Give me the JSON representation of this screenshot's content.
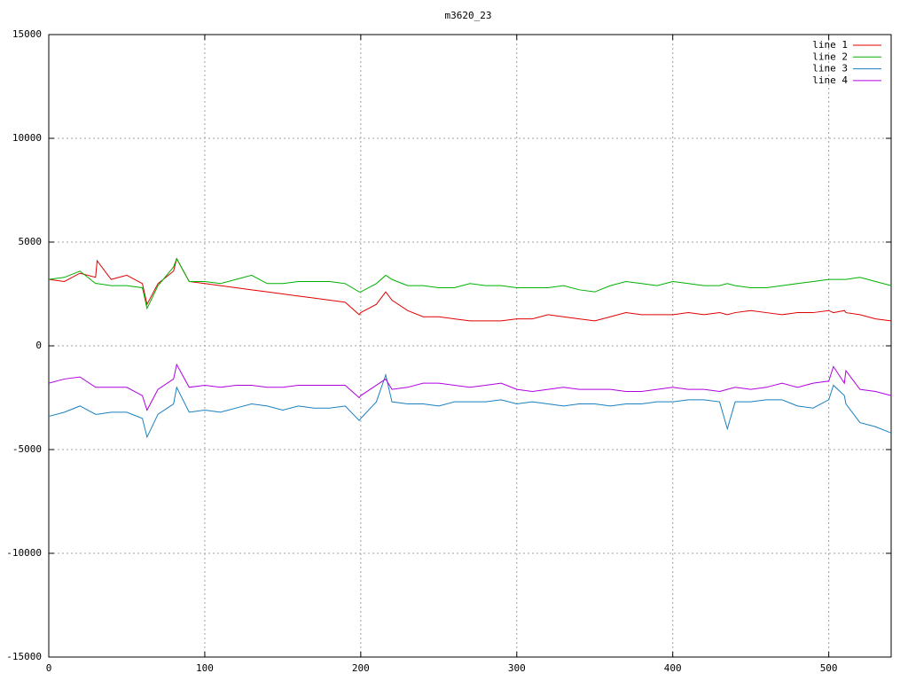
{
  "chart_data": {
    "type": "line",
    "title": "m3620_23",
    "x": [
      0,
      10,
      20,
      30,
      31,
      40,
      50,
      60,
      63,
      70,
      80,
      82,
      90,
      100,
      110,
      120,
      130,
      140,
      150,
      160,
      170,
      180,
      190,
      199,
      200,
      210,
      216,
      220,
      230,
      240,
      250,
      260,
      270,
      280,
      290,
      300,
      310,
      320,
      330,
      340,
      350,
      360,
      370,
      380,
      390,
      400,
      410,
      420,
      430,
      435,
      440,
      450,
      460,
      470,
      480,
      490,
      500,
      503,
      510,
      511,
      520,
      530,
      540
    ],
    "series": [
      {
        "name": "line 1",
        "color": "#e00000",
        "values": [
          3200,
          3100,
          3500,
          3300,
          4100,
          3200,
          3400,
          3000,
          2000,
          3000,
          3600,
          4200,
          3100,
          3000,
          2900,
          2800,
          2700,
          2600,
          2500,
          2400,
          2300,
          2200,
          2100,
          1500,
          1600,
          2000,
          2600,
          2200,
          1700,
          1400,
          1400,
          1300,
          1200,
          1200,
          1200,
          1300,
          1300,
          1500,
          1400,
          1300,
          1200,
          1400,
          1600,
          1500,
          1500,
          1500,
          1600,
          1500,
          1600,
          1500,
          1600,
          1700,
          1600,
          1500,
          1600,
          1600,
          1700,
          1600,
          1700,
          1600,
          1500,
          1300,
          1200
        ]
      },
      {
        "name": "line 2",
        "color": "#00b000",
        "values": [
          3200,
          3300,
          3600,
          3000,
          3000,
          2900,
          2900,
          2800,
          1800,
          2900,
          3800,
          4200,
          3100,
          3100,
          3000,
          3200,
          3400,
          3000,
          3000,
          3100,
          3100,
          3100,
          3000,
          2600,
          2600,
          3000,
          3400,
          3200,
          2900,
          2900,
          2800,
          2800,
          3000,
          2900,
          2900,
          2800,
          2800,
          2800,
          2900,
          2700,
          2600,
          2900,
          3100,
          3000,
          2900,
          3100,
          3000,
          2900,
          2900,
          3000,
          2900,
          2800,
          2800,
          2900,
          3000,
          3100,
          3200,
          3200,
          3200,
          3200,
          3300,
          3100,
          2900
        ]
      },
      {
        "name": "line 3",
        "color": "#1a80c0",
        "values": [
          -3400,
          -3200,
          -2900,
          -3300,
          -3300,
          -3200,
          -3200,
          -3500,
          -4400,
          -3300,
          -2800,
          -2000,
          -3200,
          -3100,
          -3200,
          -3000,
          -2800,
          -2900,
          -3100,
          -2900,
          -3000,
          -3000,
          -2900,
          -3600,
          -3500,
          -2700,
          -1400,
          -2700,
          -2800,
          -2800,
          -2900,
          -2700,
          -2700,
          -2700,
          -2600,
          -2800,
          -2700,
          -2800,
          -2900,
          -2800,
          -2800,
          -2900,
          -2800,
          -2800,
          -2700,
          -2700,
          -2600,
          -2600,
          -2700,
          -4000,
          -2700,
          -2700,
          -2600,
          -2600,
          -2900,
          -3000,
          -2600,
          -1900,
          -2400,
          -2800,
          -3700,
          -3900,
          -4200
        ]
      },
      {
        "name": "line 4",
        "color": "#b000e0",
        "values": [
          -1800,
          -1600,
          -1500,
          -2000,
          -2000,
          -2000,
          -2000,
          -2400,
          -3100,
          -2100,
          -1600,
          -900,
          -2000,
          -1900,
          -2000,
          -1900,
          -1900,
          -2000,
          -2000,
          -1900,
          -1900,
          -1900,
          -1900,
          -2500,
          -2400,
          -1900,
          -1600,
          -2100,
          -2000,
          -1800,
          -1800,
          -1900,
          -2000,
          -1900,
          -1800,
          -2100,
          -2200,
          -2100,
          -2000,
          -2100,
          -2100,
          -2100,
          -2200,
          -2200,
          -2100,
          -2000,
          -2100,
          -2100,
          -2200,
          -2100,
          -2000,
          -2100,
          -2000,
          -1800,
          -2000,
          -1800,
          -1700,
          -1000,
          -1800,
          -1200,
          -2100,
          -2200,
          -2400
        ]
      }
    ],
    "xlim": [
      0,
      540
    ],
    "xticks": [
      0,
      100,
      200,
      300,
      400,
      500
    ],
    "ylim": [
      -15000,
      15000
    ],
    "yticks": [
      -15000,
      -10000,
      -5000,
      0,
      5000,
      10000,
      15000
    ],
    "grid": true,
    "legend": "top-right"
  }
}
